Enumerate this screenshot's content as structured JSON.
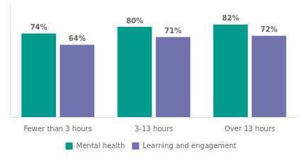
{
  "chart_data": {
    "type": "bar",
    "categories": [
      "Fewer than 3 hours",
      "3-13 hours",
      "Over 13 hours"
    ],
    "series": [
      {
        "name": "Mental health",
        "color": "#009B8D",
        "values": [
          74,
          80,
          82
        ],
        "value_labels": [
          "74%",
          "80%",
          "82%"
        ]
      },
      {
        "name": "Learning and engagement",
        "color": "#7272AD",
        "values": [
          64,
          71,
          72
        ],
        "value_labels": [
          "64%",
          "71%",
          "72%"
        ]
      }
    ],
    "ylim": [
      0,
      100
    ],
    "grid": false,
    "legend": "bottom",
    "data_labels": true,
    "tick_labels": "x"
  }
}
